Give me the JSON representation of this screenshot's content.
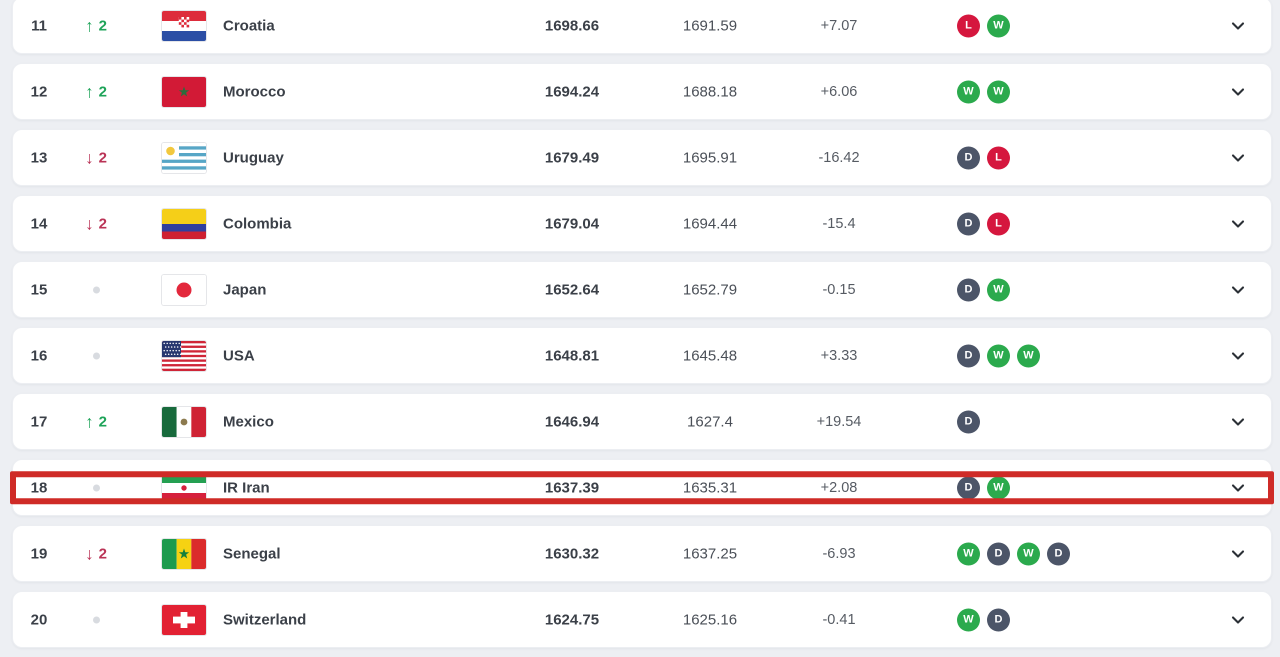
{
  "table": {
    "rows": [
      {
        "rank": "11",
        "movement": "up",
        "movement_value": "2",
        "country": "Croatia",
        "flag": "croatia",
        "points": "1698.66",
        "prev_points": "1691.59",
        "change": "+7.07",
        "form": [
          "L",
          "W"
        ],
        "highlighted": false
      },
      {
        "rank": "12",
        "movement": "up",
        "movement_value": "2",
        "country": "Morocco",
        "flag": "morocco",
        "points": "1694.24",
        "prev_points": "1688.18",
        "change": "+6.06",
        "form": [
          "W",
          "W"
        ],
        "highlighted": false
      },
      {
        "rank": "13",
        "movement": "down",
        "movement_value": "2",
        "country": "Uruguay",
        "flag": "uruguay",
        "points": "1679.49",
        "prev_points": "1695.91",
        "change": "-16.42",
        "form": [
          "D",
          "L"
        ],
        "highlighted": false
      },
      {
        "rank": "14",
        "movement": "down",
        "movement_value": "2",
        "country": "Colombia",
        "flag": "colombia",
        "points": "1679.04",
        "prev_points": "1694.44",
        "change": "-15.4",
        "form": [
          "D",
          "L"
        ],
        "highlighted": false
      },
      {
        "rank": "15",
        "movement": "none",
        "movement_value": "",
        "country": "Japan",
        "flag": "japan",
        "points": "1652.64",
        "prev_points": "1652.79",
        "change": "-0.15",
        "form": [
          "D",
          "W"
        ],
        "highlighted": false
      },
      {
        "rank": "16",
        "movement": "none",
        "movement_value": "",
        "country": "USA",
        "flag": "usa",
        "points": "1648.81",
        "prev_points": "1645.48",
        "change": "+3.33",
        "form": [
          "D",
          "W",
          "W"
        ],
        "highlighted": false
      },
      {
        "rank": "17",
        "movement": "up",
        "movement_value": "2",
        "country": "Mexico",
        "flag": "mexico",
        "points": "1646.94",
        "prev_points": "1627.4",
        "change": "+19.54",
        "form": [
          "D"
        ],
        "highlighted": false
      },
      {
        "rank": "18",
        "movement": "none",
        "movement_value": "",
        "country": "IR Iran",
        "flag": "iran",
        "points": "1637.39",
        "prev_points": "1635.31",
        "change": "+2.08",
        "form": [
          "D",
          "W"
        ],
        "highlighted": true
      },
      {
        "rank": "19",
        "movement": "down",
        "movement_value": "2",
        "country": "Senegal",
        "flag": "senegal",
        "points": "1630.32",
        "prev_points": "1637.25",
        "change": "-6.93",
        "form": [
          "W",
          "D",
          "W",
          "D"
        ],
        "highlighted": false
      },
      {
        "rank": "20",
        "movement": "none",
        "movement_value": "",
        "country": "Switzerland",
        "flag": "switzerland",
        "points": "1624.75",
        "prev_points": "1625.16",
        "change": "-0.41",
        "form": [
          "W",
          "D"
        ],
        "highlighted": false
      }
    ]
  },
  "icons": {
    "up_arrow": "↑",
    "down_arrow": "↓",
    "chevron": "chevron-down"
  },
  "colors": {
    "win_badge": "#2baa4d",
    "draw_badge": "#4c5568",
    "loss_badge": "#d5173e",
    "movement_up": "#1da358",
    "movement_down": "#ba3356",
    "highlight_border": "#cf2b27",
    "page_background": "#edeff3",
    "card_background": "#ffffff"
  }
}
